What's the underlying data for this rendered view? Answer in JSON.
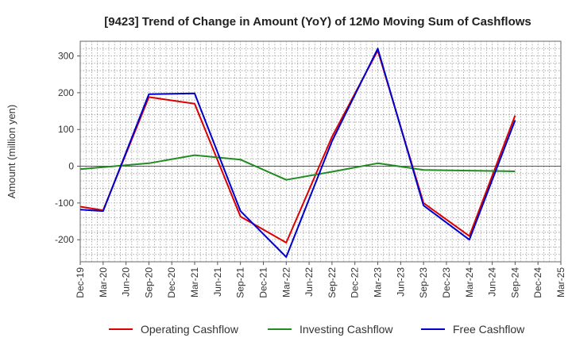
{
  "chart_data": {
    "type": "line",
    "title": "[9423]  Trend of Change in Amount (YoY) of 12Mo Moving Sum of Cashflows",
    "xlabel": "",
    "ylabel": "Amount (million yen)",
    "ylim": [
      -260,
      340
    ],
    "yticks": [
      300,
      200,
      100,
      0,
      -100,
      -200
    ],
    "grid": true,
    "legend_position": "bottom",
    "categories": [
      "Dec-19",
      "Mar-20",
      "Jun-20",
      "Sep-20",
      "Dec-20",
      "Mar-21",
      "Jun-21",
      "Sep-21",
      "Dec-21",
      "Mar-22",
      "Jun-22",
      "Sep-22",
      "Dec-22",
      "Mar-23",
      "Jun-23",
      "Sep-23",
      "Dec-23",
      "Mar-24",
      "Jun-24",
      "Sep-24",
      "Dec-24",
      "Mar-25"
    ],
    "series": [
      {
        "name": "Operating Cashflow",
        "color": "#dd0000",
        "values": [
          -110,
          -120,
          null,
          188,
          null,
          170,
          null,
          -137,
          null,
          -208,
          null,
          80,
          null,
          315,
          null,
          -100,
          null,
          -190,
          null,
          138,
          null,
          null
        ]
      },
      {
        "name": "Investing Cashflow",
        "color": "#228b22",
        "values": [
          -8,
          null,
          null,
          8,
          null,
          30,
          null,
          18,
          null,
          -37,
          null,
          -15,
          null,
          8,
          null,
          -10,
          null,
          -12,
          null,
          -14,
          null,
          null
        ]
      },
      {
        "name": "Free Cashflow",
        "color": "#0000cc",
        "values": [
          -118,
          -122,
          null,
          196,
          null,
          198,
          null,
          -122,
          null,
          -247,
          null,
          68,
          null,
          320,
          null,
          -107,
          null,
          -200,
          null,
          125,
          null,
          null
        ]
      }
    ]
  }
}
